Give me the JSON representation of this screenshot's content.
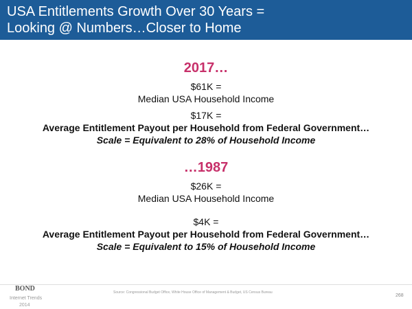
{
  "header": {
    "title_lines": [
      "USA Entitlements Growth Over 30 Years =",
      "Looking @ Numbers…Closer to Home"
    ]
  },
  "sections": [
    {
      "year": "2017…",
      "income_value": "$61K =",
      "income_label": "Median USA Household Income",
      "payout_value": "$17K =",
      "payout_label": "Average Entitlement Payout per Household from Federal Government…",
      "scale": "Scale = Equivalent to 28% of Household Income"
    },
    {
      "year": "…1987",
      "income_value": "$26K =",
      "income_label": "Median USA Household Income",
      "payout_value": "$4K =",
      "payout_label": "Average Entitlement Payout per Household from Federal Government…",
      "scale": "Scale = Equivalent to 15% of Household Income"
    }
  ],
  "footer": {
    "logo": "BOND",
    "logo_sub": "Internet Trends",
    "logo_year": "2014",
    "source": "Source: Congressional Budget Office, White House Office of Management & Budget, US Census Bureau",
    "page": "268"
  }
}
